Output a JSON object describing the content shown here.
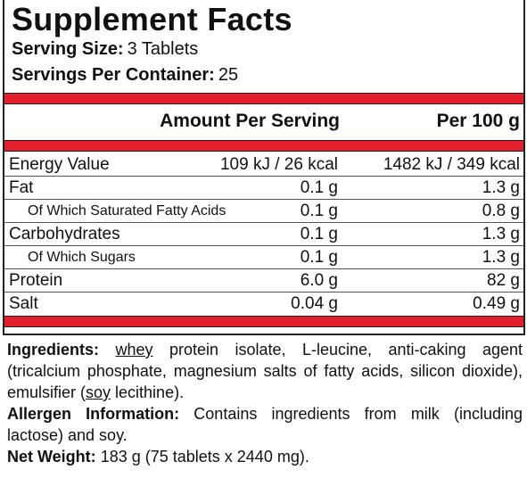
{
  "header": {
    "title": "Supplement Facts"
  },
  "serving": {
    "size_label": "Serving Size:",
    "size_value": "3 Tablets",
    "container_label": "Servings Per Container:",
    "container_value": "25"
  },
  "table": {
    "headers": [
      "Amount Per Serving",
      "Per 100 g"
    ],
    "rows": [
      {
        "name": "Energy Value",
        "per_serving": "109 kJ / 26 kcal",
        "per_100g": "1482 kJ / 349 kcal"
      },
      {
        "name": "Fat",
        "per_serving": "0.1 g",
        "per_100g": "1.3 g"
      },
      {
        "name": "Of Which Saturated Fatty Acids",
        "per_serving": "0.1 g",
        "per_100g": "0.8 g",
        "sub": true
      },
      {
        "name": "Carbohydrates",
        "per_serving": "0.1 g",
        "per_100g": "1.3 g"
      },
      {
        "name": "Of Which Sugars",
        "per_serving": "0.1 g",
        "per_100g": "1.3 g",
        "sub": true
      },
      {
        "name": "Protein",
        "per_serving": "6.0 g",
        "per_100g": "82 g"
      },
      {
        "name": "Salt",
        "per_serving": "0.04 g",
        "per_100g": "0.49 g"
      }
    ]
  },
  "ingredients": {
    "label": "Ingredients:",
    "parts": [
      {
        "text": "whey",
        "underline": true
      },
      {
        "text": " protein isolate, L-leucine, anti-caking agent (tricalcium phosphate, magnesium salts of fatty acids, silicon dioxide), emulsifier ("
      },
      {
        "text": "soy",
        "underline": true
      },
      {
        "text": " lecithine)."
      }
    ]
  },
  "allergen": {
    "label": "Allergen Information:",
    "text": "Contains ingredients from milk (including lactose) and soy."
  },
  "net_weight": {
    "label": "Net Weight:",
    "text": "183 g (75 tablets x 2440 mg)."
  }
}
